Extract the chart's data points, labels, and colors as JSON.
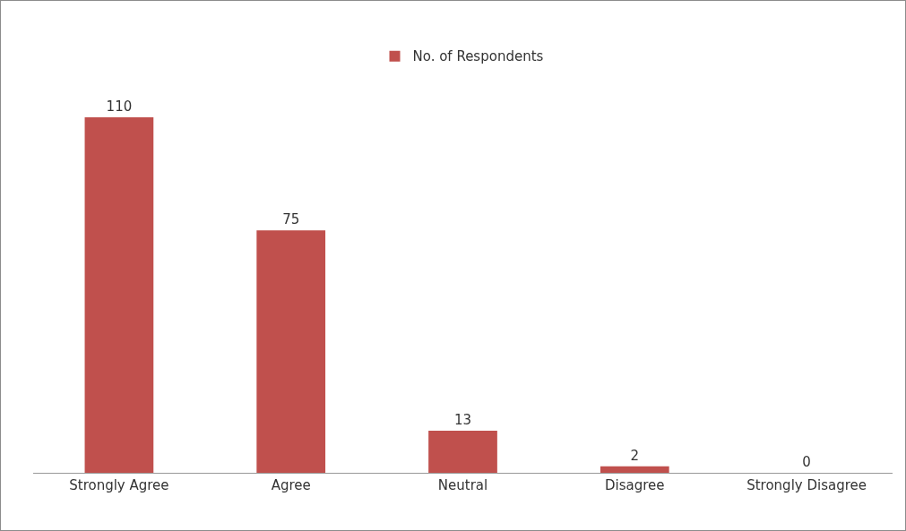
{
  "chart_data": {
    "type": "bar",
    "categories": [
      "Strongly Agree",
      "Agree",
      "Neutral",
      "Disagree",
      "Strongly Disagree"
    ],
    "series": [
      {
        "name": "No. of Respondents",
        "color": "#c0504d",
        "values": [
          110,
          75,
          13,
          2,
          0
        ]
      }
    ],
    "data_labels": true,
    "legend": "top",
    "grid": false
  }
}
